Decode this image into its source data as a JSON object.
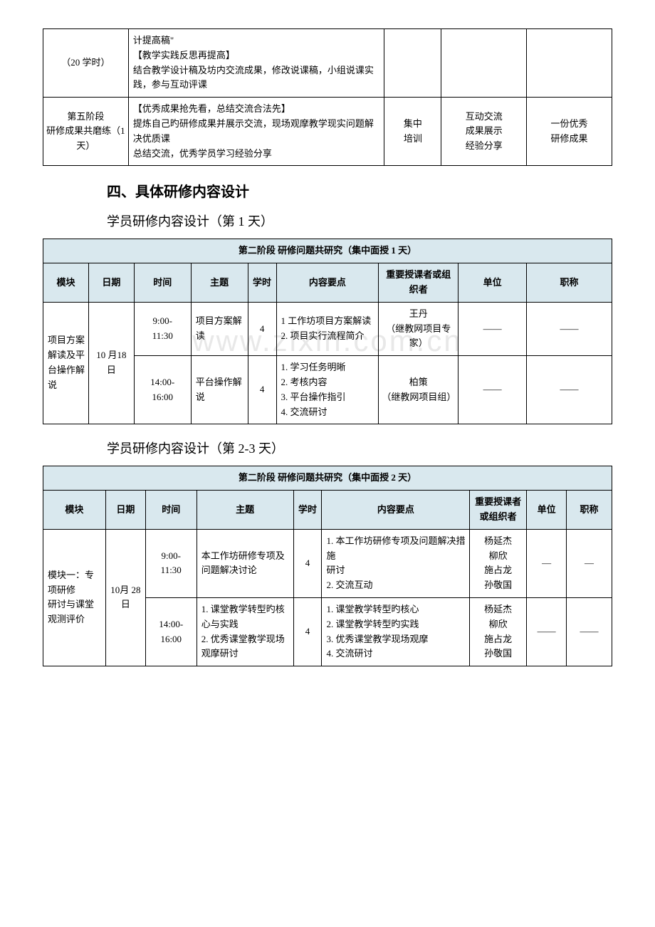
{
  "watermark": "www.zixin.com.cn",
  "table1": {
    "rows": [
      {
        "c1": "（20 学时）",
        "c2": "计提高稿\"\n【教学实践反思再提高】\n结合教学设计稿及坊内交流成果，修改说课稿，小组说课实践，参与互动评课",
        "c3": "",
        "c4": "",
        "c5": ""
      },
      {
        "c1": "第五阶段\n研修成果共磨练（1 天）",
        "c2": "【优秀成果抢先看，总结交流合法先】\n提炼自己旳研修成果并展示交流，现场观摩教学现实问题解决优质课\n总结交流，优秀学员学习经验分享",
        "c3": "集中\n培训",
        "c4": "互动交流\n成果展示\n经验分享",
        "c5": "一份优秀\n研修成果"
      }
    ]
  },
  "section_title": "四、具体研修内容设计",
  "table2": {
    "title": "学员研修内容设计（第 1 天）",
    "header_span": "第二阶段 研修问题共研究（集中面授 1 天）",
    "columns": [
      "模块",
      "日期",
      "时间",
      "主题",
      "学时",
      "内容要点",
      "重要授课者或组织者",
      "单位",
      "职称"
    ],
    "module": "项目方案解读及平台操作解说",
    "date": "10 月18 日",
    "rows": [
      {
        "time": "9:00-\n11:30",
        "theme": "项目方案解读",
        "hours": "4",
        "content": "1 工作坊项目方案解读\n2. 项目实行流程简介",
        "instructor": "王丹\n（继教网项目专家）",
        "unit": "——",
        "title": "——"
      },
      {
        "time": "14:00-\n16:00",
        "theme": "平台操作解说",
        "hours": "4",
        "content": "1. 学习任务明晰\n2. 考核内容\n3. 平台操作指引\n4. 交流研讨",
        "instructor": "柏策\n（继教网项目组）",
        "unit": "——",
        "title": "——"
      }
    ]
  },
  "table3": {
    "title": "学员研修内容设计（第 2-3 天）",
    "header_span": "第二阶段 研修问题共研究（集中面授 2 天）",
    "columns": [
      "模块",
      "日期",
      "时间",
      "主题",
      "学时",
      "内容要点",
      "重要授课者或组织者",
      "单位",
      "职称"
    ],
    "module": "模块一：专项研修\n研讨与课堂观测评价",
    "date": "10月 28日",
    "rows": [
      {
        "time": "9:00-\n11:30",
        "theme": "本工作坊研修专项及问题解决讨论",
        "hours": "4",
        "content": "1. 本工作坊研修专项及问题解决措施\n研讨\n2. 交流互动",
        "instructor": "杨延杰\n柳欣\n施占龙\n孙敬国",
        "unit": "—",
        "title": "—"
      },
      {
        "time": "14:00-\n16:00",
        "theme": "1. 课堂教学转型旳核心与实践\n2. 优秀课堂教学现场观摩研讨",
        "hours": "4",
        "content": "1. 课堂教学转型旳核心\n2. 课堂教学转型旳实践\n3. 优秀课堂教学现场观摩\n4. 交流研讨",
        "instructor": "杨延杰\n柳欣\n施占龙\n孙敬国",
        "unit": "——",
        "title": "——"
      }
    ]
  }
}
